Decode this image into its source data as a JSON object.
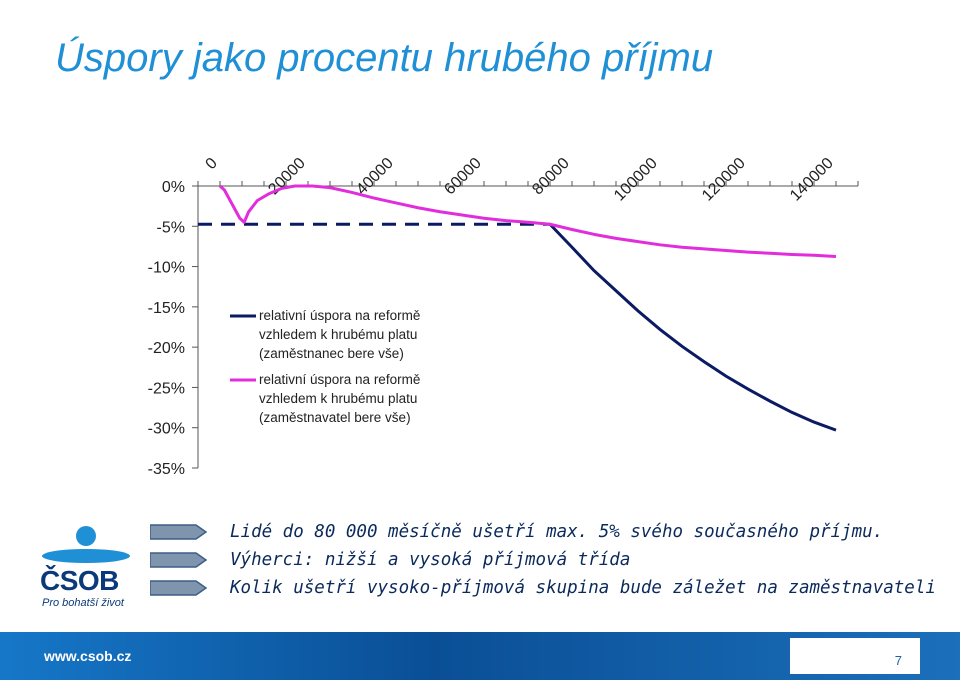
{
  "title": "Úspory jako procentu hrubého příjmu",
  "chart_data": {
    "type": "line",
    "x_ticks": [
      0,
      20000,
      40000,
      60000,
      80000,
      100000,
      120000,
      140000
    ],
    "y_ticks": [
      "0%",
      "-5%",
      "-10%",
      "-15%",
      "-20%",
      "-25%",
      "-30%",
      "-35%"
    ],
    "y_tick_values": [
      0,
      -5,
      -10,
      -15,
      -20,
      -25,
      -30,
      -35
    ],
    "xlim": [
      0,
      150000
    ],
    "ylim": [
      -35,
      0
    ],
    "x_axis_position": "top",
    "grid": false,
    "legend_position": "center-left",
    "series": [
      {
        "name": "relativní úspora na reformě vzhledem k hrubému platu (zaměstnanec bere vše)",
        "color": "#0a1a63",
        "dashed_until_x": 80000,
        "points": [
          [
            0,
            -4.75
          ],
          [
            80000,
            -4.75
          ],
          [
            85000,
            -7.6
          ],
          [
            90000,
            -10.5
          ],
          [
            95000,
            -13.0
          ],
          [
            100000,
            -15.5
          ],
          [
            105000,
            -17.8
          ],
          [
            110000,
            -19.9
          ],
          [
            115000,
            -21.8
          ],
          [
            120000,
            -23.6
          ],
          [
            125000,
            -25.2
          ],
          [
            130000,
            -26.7
          ],
          [
            135000,
            -28.1
          ],
          [
            140000,
            -29.3
          ],
          [
            145000,
            -30.3
          ]
        ]
      },
      {
        "name": "relativní úspora na reformě vzhledem k hrubému platu (zaměstnavatel bere vše)",
        "color": "#e12ddb",
        "points": [
          [
            5000,
            0
          ],
          [
            6000,
            -0.5
          ],
          [
            8000,
            -2.5
          ],
          [
            9500,
            -4.0
          ],
          [
            10500,
            -4.5
          ],
          [
            11500,
            -3.2
          ],
          [
            13500,
            -1.8
          ],
          [
            16000,
            -1.0
          ],
          [
            19000,
            -0.3
          ],
          [
            22000,
            0
          ],
          [
            26000,
            0
          ],
          [
            30000,
            -0.2
          ],
          [
            35000,
            -0.8
          ],
          [
            40000,
            -1.5
          ],
          [
            45000,
            -2.1
          ],
          [
            50000,
            -2.7
          ],
          [
            55000,
            -3.2
          ],
          [
            60000,
            -3.6
          ],
          [
            65000,
            -4.0
          ],
          [
            70000,
            -4.3
          ],
          [
            75000,
            -4.5
          ],
          [
            80000,
            -4.75
          ],
          [
            85000,
            -5.4
          ],
          [
            90000,
            -6.0
          ],
          [
            95000,
            -6.5
          ],
          [
            100000,
            -6.9
          ],
          [
            105000,
            -7.3
          ],
          [
            110000,
            -7.6
          ],
          [
            115000,
            -7.8
          ],
          [
            120000,
            -8.0
          ],
          [
            125000,
            -8.2
          ],
          [
            130000,
            -8.35
          ],
          [
            135000,
            -8.5
          ],
          [
            140000,
            -8.6
          ],
          [
            145000,
            -8.75
          ]
        ]
      }
    ]
  },
  "legend": {
    "items": [
      {
        "lines": [
          "relativní úspora na reformě",
          "vzhledem k hrubému platu",
          "(zaměstnanec bere vše)"
        ],
        "color": "#0a1a63"
      },
      {
        "lines": [
          "relativní úspora na reformě",
          "vzhledem k hrubému platu",
          "(zaměstnavatel bere vše)"
        ],
        "color": "#e12ddb"
      }
    ]
  },
  "bullets": [
    "Lidé do 80 000 měsíčně ušetří max. 5% svého současného příjmu.",
    "Výherci: nižší a vysoká příjmová třída",
    "Kolik ušetří vysoko-příjmová skupina bude záležet na zaměstnavateli"
  ],
  "logo": {
    "text": "ČSOB",
    "slogan": "Pro bohatší život"
  },
  "footer": {
    "url": "www.csob.cz",
    "page_number": "7"
  },
  "colors": {
    "title": "#1f8fd6",
    "footer": "#0a4f96",
    "bullet_text": "#0b2a5b",
    "icon": "logo-icon"
  }
}
